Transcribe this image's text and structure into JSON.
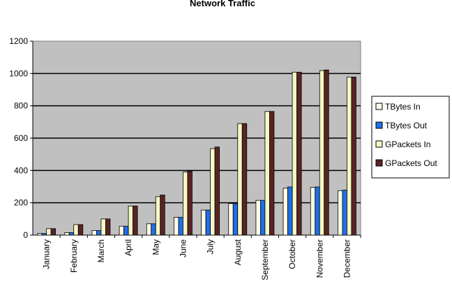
{
  "chart_data": {
    "type": "bar",
    "title": "Network Traffic",
    "xlabel": "",
    "ylabel": "",
    "ylim": [
      0,
      1200
    ],
    "yticks": [
      0,
      200,
      400,
      600,
      800,
      1000,
      1200
    ],
    "grid": true,
    "legend_position": "right",
    "categories": [
      "January",
      "February",
      "March",
      "April",
      "May",
      "June",
      "July",
      "August",
      "September",
      "October",
      "November",
      "December"
    ],
    "series": [
      {
        "name": "TBytes In",
        "color": "#fdfde8",
        "values": [
          10,
          15,
          28,
          55,
          70,
          110,
          155,
          195,
          215,
          290,
          295,
          275
        ]
      },
      {
        "name": "TBytes Out",
        "color": "#1f6fe8",
        "values": [
          10,
          15,
          28,
          55,
          70,
          110,
          155,
          195,
          215,
          298,
          298,
          278
        ]
      },
      {
        "name": "GPackets In",
        "color": "#f7f7c5",
        "values": [
          40,
          65,
          100,
          180,
          238,
          390,
          535,
          690,
          765,
          1008,
          1018,
          978
        ]
      },
      {
        "name": "GPackets Out",
        "color": "#5a2424",
        "values": [
          40,
          65,
          100,
          180,
          248,
          395,
          545,
          690,
          765,
          1008,
          1022,
          978
        ]
      }
    ]
  }
}
